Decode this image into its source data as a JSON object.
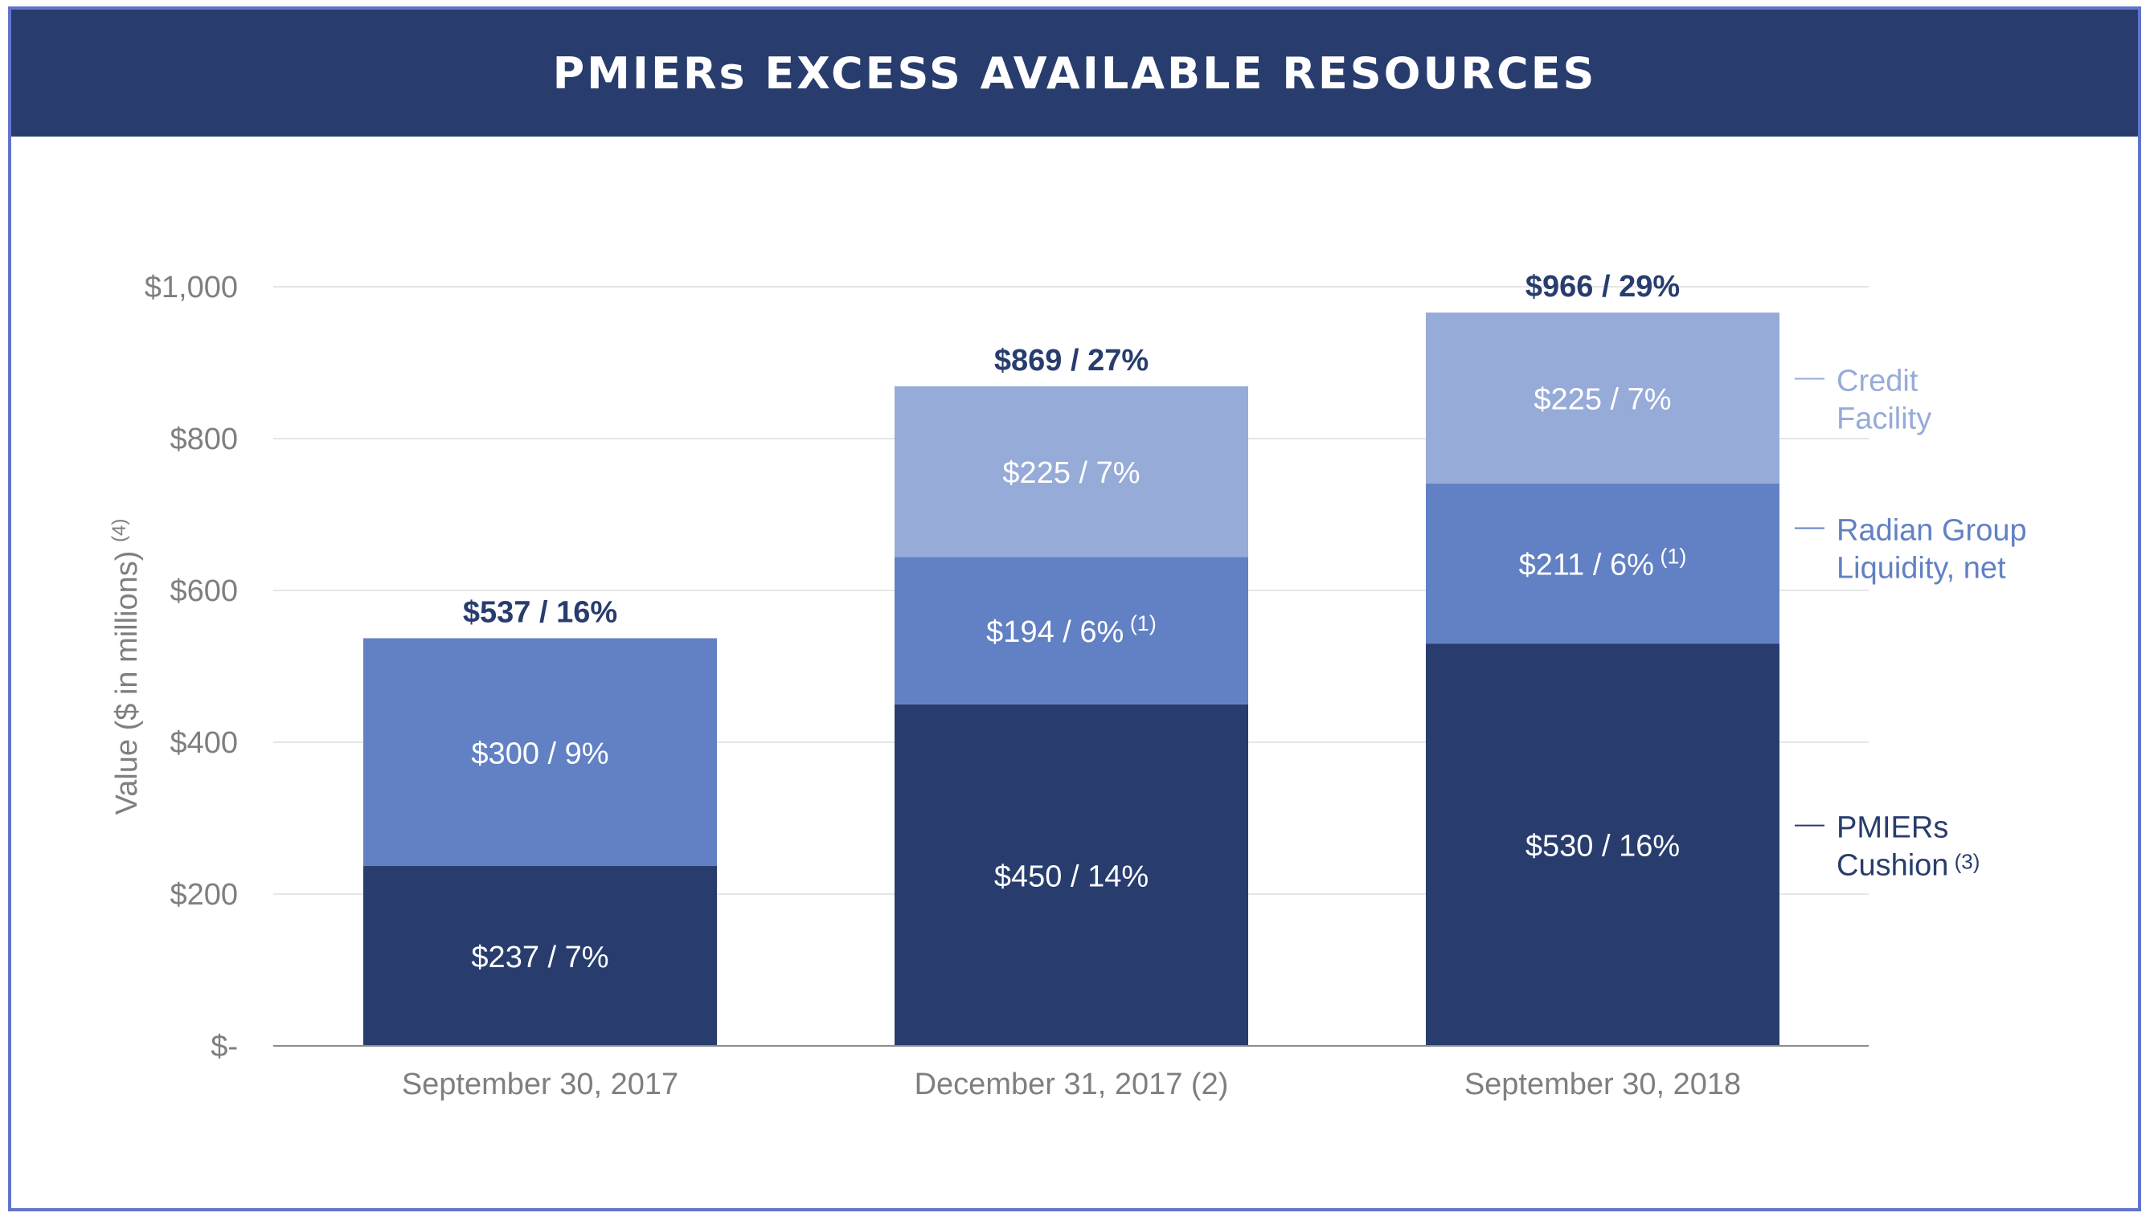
{
  "header": {
    "title": "PMIERs EXCESS AVAILABLE RESOURCES"
  },
  "colors": {
    "title_bar": "#283d6e",
    "frame_border": "#6274cc",
    "pmiers_cushion": "#283d6e",
    "radian_group": "#6281c4",
    "credit_facility": "#97abd8",
    "axis_text": "#7f7f7f",
    "total_label": "#283d6e"
  },
  "chart_data": {
    "type": "bar",
    "stacked": true,
    "title": "PMIERs EXCESS AVAILABLE RESOURCES",
    "ylabel": "Value ($ in millions)",
    "ylabel_note": "(4)",
    "xlabel": "",
    "ylim": [
      0,
      1000
    ],
    "yticks": [
      0,
      200,
      400,
      600,
      800,
      1000
    ],
    "ytick_labels": [
      "$-",
      "$200",
      "$400",
      "$600",
      "$800",
      "$1,000"
    ],
    "grid": true,
    "categories": [
      "September 30, 2017",
      "December 31, 2017 (2)",
      "September 30, 2018"
    ],
    "series": [
      {
        "name": "PMIERs Cushion",
        "legend_lines": [
          "PMIERs",
          "Cushion"
        ],
        "legend_note": "(3)",
        "color": "#283d6e",
        "values": [
          237,
          450,
          530
        ],
        "labels": [
          "$237 / 7%",
          "$450 / 14%",
          "$530 / 16%"
        ],
        "notes": [
          "",
          "",
          ""
        ]
      },
      {
        "name": "Radian Group Liquidity, net",
        "legend_lines": [
          "Radian Group",
          "Liquidity, net"
        ],
        "legend_note": "",
        "color": "#6281c4",
        "values": [
          300,
          194,
          211
        ],
        "labels": [
          "$300 / 9%",
          "$194 / 6%",
          "$211 / 6%"
        ],
        "notes": [
          "",
          "(1)",
          "(1)"
        ]
      },
      {
        "name": "Credit Facility",
        "legend_lines": [
          "Credit",
          "Facility"
        ],
        "legend_note": "",
        "color": "#97abd8",
        "values": [
          0,
          225,
          225
        ],
        "labels": [
          "",
          "$225 / 7%",
          "$225 / 7%"
        ],
        "notes": [
          "",
          "",
          ""
        ]
      }
    ],
    "totals": [
      537,
      869,
      966
    ],
    "total_labels": [
      "$537 / 16%",
      "$869 / 27%",
      "$966 / 29%"
    ],
    "legend_placement": "right"
  }
}
